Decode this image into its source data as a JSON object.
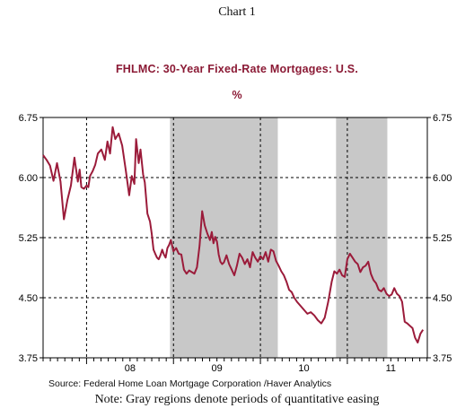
{
  "header": {
    "chart_number": "Chart 1",
    "title": "FHLMC: 30-Year Fixed-Rate Mortgages: U.S.",
    "unit": "%"
  },
  "footer": {
    "source": "Source:  Federal Home Loan Mortgage Corporation /Haver Analytics",
    "note": "Note: Gray regions denote periods of quantitative easing"
  },
  "colors": {
    "series": "#9b1b3a",
    "shade": "#c8c8c8",
    "grid": "#000000"
  },
  "chart_data": {
    "type": "line",
    "title": "FHLMC: 30-Year Fixed-Rate Mortgages: U.S.",
    "ylabel": "%",
    "xlim": [
      2007.5,
      2011.92
    ],
    "ylim": [
      3.75,
      6.75
    ],
    "yticks": [
      3.75,
      4.5,
      5.25,
      6.0,
      6.75
    ],
    "ytick_labels": [
      "3.75",
      "4.50",
      "5.25",
      "6.00",
      "6.75"
    ],
    "xtick_labels": [
      {
        "x": 2008.5,
        "label": "08"
      },
      {
        "x": 2009.5,
        "label": "09"
      },
      {
        "x": 2010.5,
        "label": "10"
      },
      {
        "x": 2011.5,
        "label": "11"
      }
    ],
    "year_dividers": [
      2008.0,
      2009.0,
      2010.0,
      2011.0
    ],
    "grid": true,
    "shaded_regions": [
      {
        "x0": 2008.96,
        "x1": 2010.2
      },
      {
        "x0": 2010.87,
        "x1": 2011.46
      }
    ],
    "series": [
      {
        "x": [
          2007.5,
          2007.54,
          2007.58,
          2007.62,
          2007.66,
          2007.7,
          2007.74,
          2007.78,
          2007.82,
          2007.86,
          2007.9,
          2007.92,
          2007.94,
          2007.97,
          2008.0,
          2008.02,
          2008.04,
          2008.07,
          2008.1,
          2008.13,
          2008.17,
          2008.21,
          2008.24,
          2008.27,
          2008.3,
          2008.33,
          2008.37,
          2008.41,
          2008.45,
          2008.49,
          2008.52,
          2008.55,
          2008.57,
          2008.6,
          2008.62,
          2008.65,
          2008.67,
          2008.7,
          2008.73,
          2008.75,
          2008.77,
          2008.79,
          2008.81,
          2008.83,
          2008.85,
          2008.87,
          2008.89,
          2008.91,
          2008.93,
          2008.95,
          2008.97,
          2009.0,
          2009.03,
          2009.06,
          2009.09,
          2009.12,
          2009.15,
          2009.18,
          2009.21,
          2009.24,
          2009.27,
          2009.3,
          2009.33,
          2009.36,
          2009.39,
          2009.42,
          2009.44,
          2009.46,
          2009.48,
          2009.5,
          2009.52,
          2009.54,
          2009.56,
          2009.58,
          2009.61,
          2009.64,
          2009.67,
          2009.7,
          2009.73,
          2009.76,
          2009.79,
          2009.82,
          2009.85,
          2009.88,
          2009.91,
          2009.94,
          2009.97,
          2010.0,
          2010.03,
          2010.06,
          2010.09,
          2010.12,
          2010.15,
          2010.18,
          2010.21,
          2010.24,
          2010.27,
          2010.3,
          2010.33,
          2010.36,
          2010.39,
          2010.42,
          2010.46,
          2010.5,
          2010.54,
          2010.58,
          2010.62,
          2010.66,
          2010.7,
          2010.74,
          2010.78,
          2010.82,
          2010.85,
          2010.88,
          2010.91,
          2010.94,
          2010.97,
          2011.0,
          2011.03,
          2011.06,
          2011.09,
          2011.12,
          2011.15,
          2011.18,
          2011.21,
          2011.24,
          2011.27,
          2011.3,
          2011.33,
          2011.36,
          2011.39,
          2011.42,
          2011.45,
          2011.48,
          2011.51,
          2011.54,
          2011.57,
          2011.6,
          2011.63,
          2011.66,
          2011.69,
          2011.72,
          2011.75,
          2011.78,
          2011.81,
          2011.84,
          2011.87
        ],
        "values": [
          6.28,
          6.22,
          6.15,
          5.96,
          6.18,
          5.95,
          5.48,
          5.72,
          5.9,
          6.25,
          5.95,
          6.1,
          5.88,
          5.86,
          5.9,
          5.88,
          6.02,
          6.08,
          6.16,
          6.3,
          6.35,
          6.22,
          6.45,
          6.3,
          6.63,
          6.48,
          6.55,
          6.4,
          6.1,
          5.78,
          6.02,
          5.92,
          6.48,
          6.18,
          6.35,
          6.04,
          5.94,
          5.55,
          5.45,
          5.3,
          5.1,
          5.05,
          5.0,
          4.98,
          5.03,
          5.1,
          5.04,
          5.0,
          5.12,
          5.16,
          5.22,
          5.08,
          5.12,
          5.05,
          5.04,
          4.85,
          4.8,
          4.84,
          4.82,
          4.8,
          4.88,
          5.15,
          5.58,
          5.4,
          5.3,
          5.22,
          5.32,
          5.18,
          5.26,
          5.2,
          5.04,
          4.95,
          4.92,
          4.94,
          5.03,
          4.92,
          4.85,
          4.78,
          4.9,
          5.05,
          5.0,
          4.92,
          4.98,
          4.88,
          5.07,
          5.0,
          4.95,
          5.02,
          4.98,
          5.07,
          4.95,
          5.1,
          5.08,
          4.96,
          4.9,
          4.83,
          4.78,
          4.7,
          4.6,
          4.57,
          4.5,
          4.45,
          4.4,
          4.35,
          4.3,
          4.32,
          4.28,
          4.22,
          4.18,
          4.25,
          4.45,
          4.7,
          4.83,
          4.8,
          4.85,
          4.78,
          4.76,
          4.98,
          5.05,
          5.0,
          4.95,
          4.92,
          4.82,
          4.88,
          4.9,
          4.95,
          4.8,
          4.72,
          4.68,
          4.6,
          4.58,
          4.62,
          4.55,
          4.52,
          4.54,
          4.62,
          4.55,
          4.52,
          4.45,
          4.2,
          4.18,
          4.15,
          4.12,
          4.0,
          3.94,
          4.05,
          4.1
        ]
      }
    ]
  }
}
